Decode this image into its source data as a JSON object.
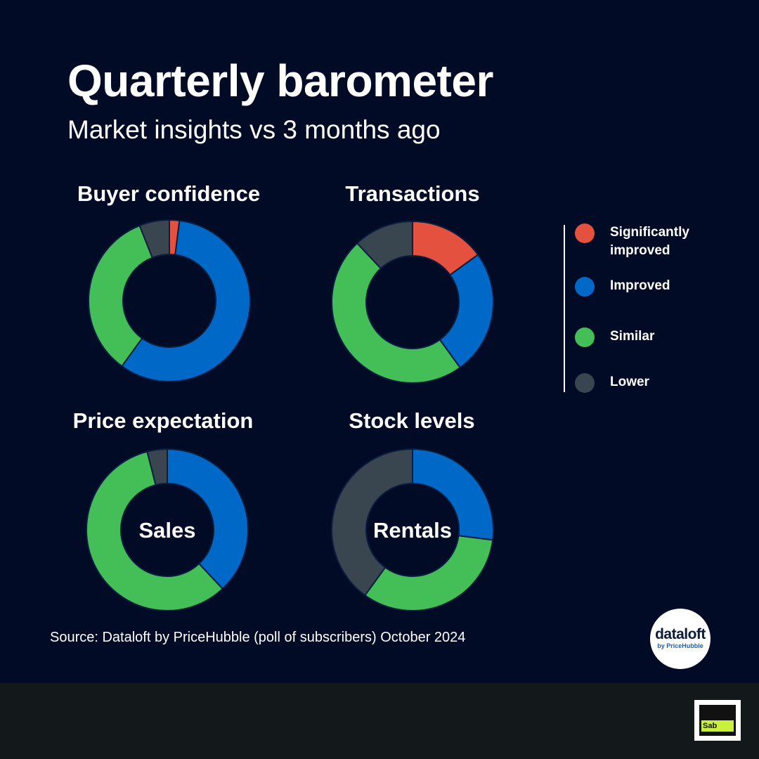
{
  "header": {
    "title": "Quarterly barometer",
    "subtitle": "Market insights vs 3 months ago"
  },
  "colors": {
    "significantly_improved": "#e4513f",
    "improved": "#0068c6",
    "similar": "#44bf57",
    "lower": "#394650",
    "background": "#020b26"
  },
  "legend": [
    {
      "label": "Significantly improved",
      "color": "#e4513f"
    },
    {
      "label": "Improved",
      "color": "#0068c6"
    },
    {
      "label": "Similar",
      "color": "#44bf57"
    },
    {
      "label": "Lower",
      "color": "#394650"
    }
  ],
  "chart_data": [
    {
      "type": "pie",
      "title": "Buyer confidence",
      "center_label": "",
      "categories": [
        "Significantly improved",
        "Improved",
        "Similar",
        "Lower"
      ],
      "values": [
        2,
        58,
        34,
        6
      ]
    },
    {
      "type": "pie",
      "title": "Transactions",
      "center_label": "",
      "categories": [
        "Significantly improved",
        "Improved",
        "Similar",
        "Lower"
      ],
      "values": [
        15,
        25,
        48,
        12
      ]
    },
    {
      "type": "pie",
      "title": "Price expectation",
      "center_label": "Sales",
      "categories": [
        "Significantly improved",
        "Improved",
        "Similar",
        "Lower"
      ],
      "values": [
        0,
        38,
        58,
        4
      ]
    },
    {
      "type": "pie",
      "title": "Stock levels",
      "center_label": "Rentals",
      "categories": [
        "Significantly improved",
        "Improved",
        "Similar",
        "Lower"
      ],
      "values": [
        0,
        27,
        33,
        40
      ]
    }
  ],
  "footer": {
    "source": "Source: Dataloft by PriceHubble (poll of subscribers) October 2024",
    "brand_name": "dataloft",
    "brand_sub": "by PriceHubble",
    "corner_logo_text": "Sab"
  }
}
